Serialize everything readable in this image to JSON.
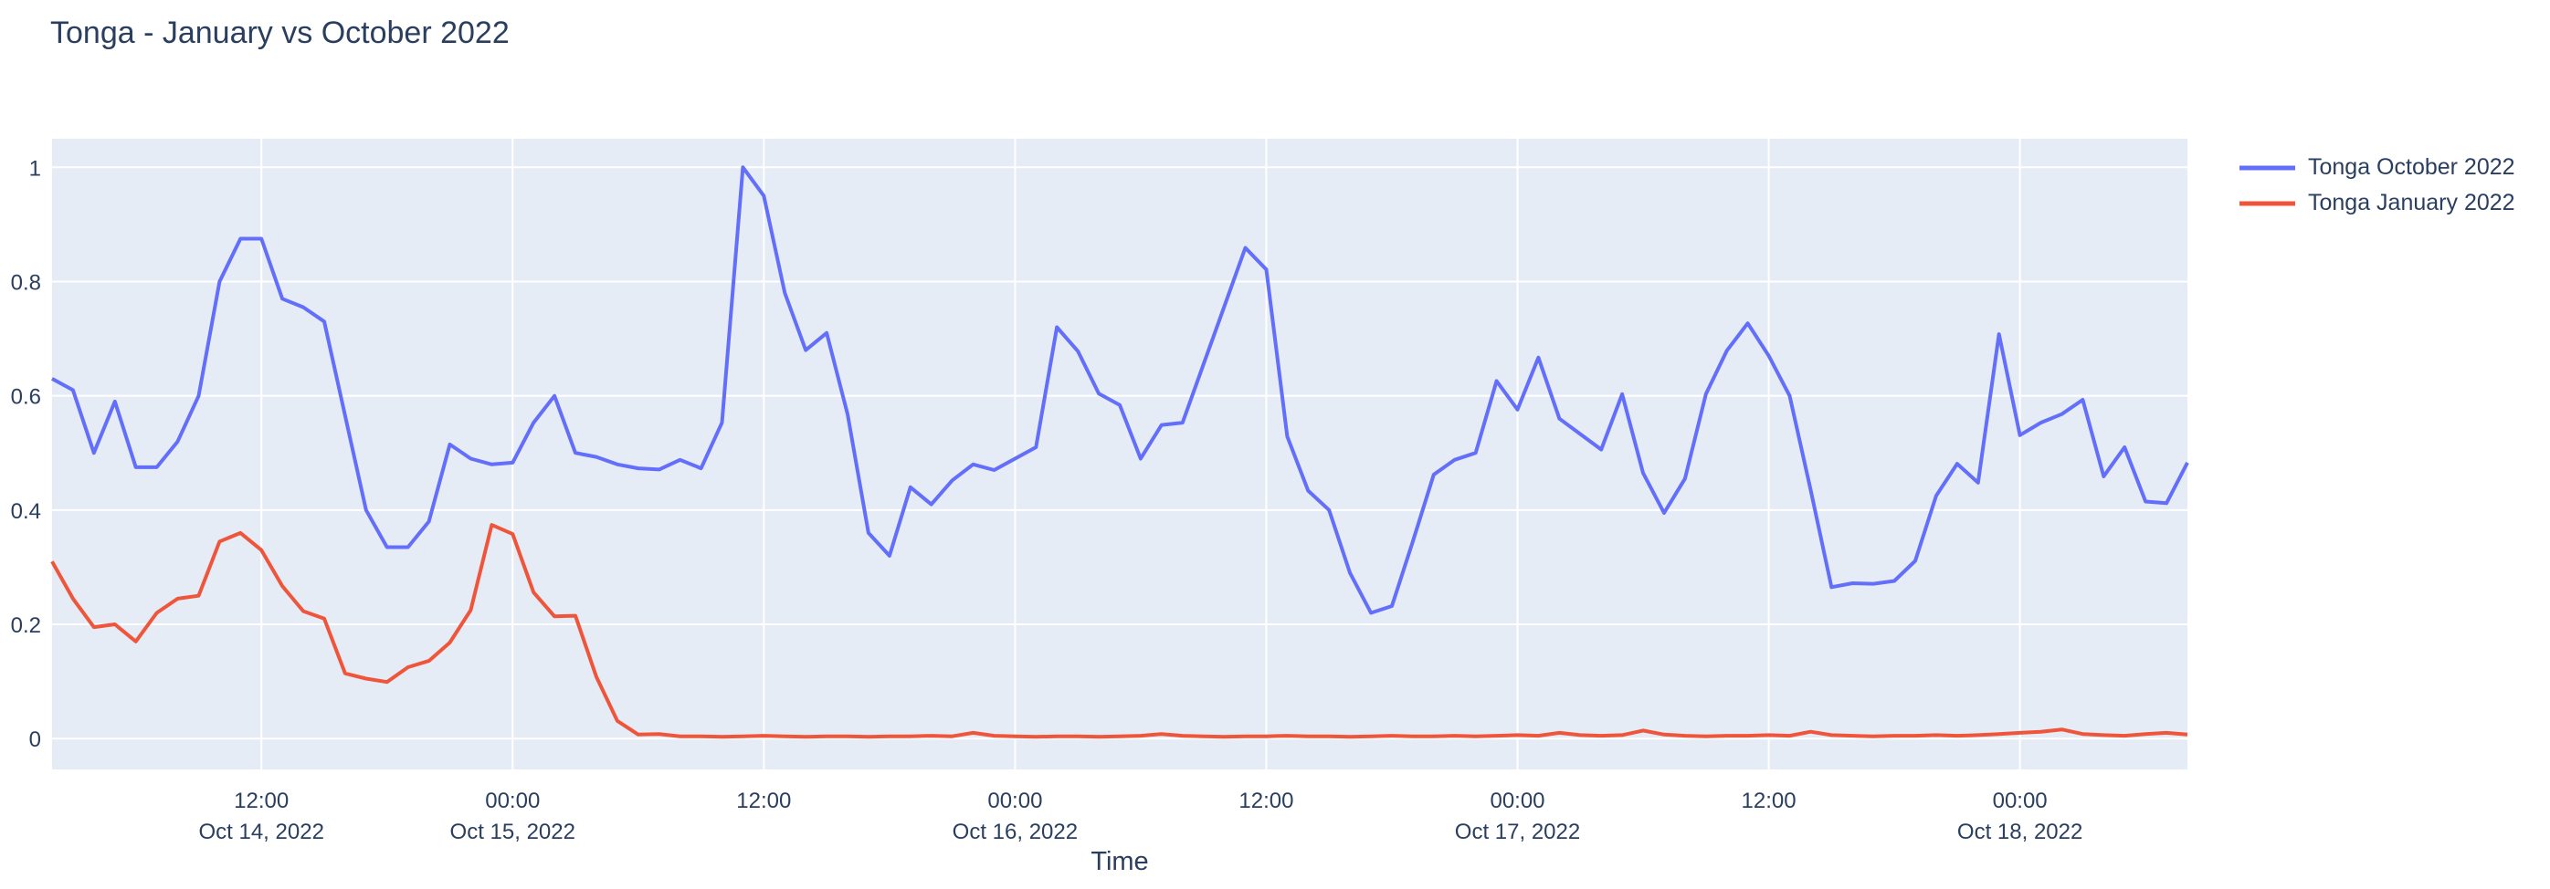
{
  "title": "Tonga - January vs October 2022",
  "chart_data": {
    "type": "line",
    "title": "Tonga - January vs October 2022",
    "xlabel": "Time",
    "ylabel": "",
    "x_start": "2022-10-14 02:00",
    "x_end": "2022-10-18 08:00",
    "x_step": "1 hour",
    "n_points": 103,
    "ylim": [
      -0.054,
      1.05
    ],
    "grid": true,
    "legend_position": "right-top-outside",
    "colors": {
      "plot_background": "#E5ECF6",
      "gridline": "#FFFFFF",
      "text": "#2a3f5f",
      "page_background": "#FFFFFF"
    },
    "y_ticks": [
      {
        "value": 0,
        "label": "0"
      },
      {
        "value": 0.2,
        "label": "0.2"
      },
      {
        "value": 0.4,
        "label": "0.4"
      },
      {
        "value": 0.6,
        "label": "0.6"
      },
      {
        "value": 0.8,
        "label": "0.8"
      },
      {
        "value": 1,
        "label": "1"
      }
    ],
    "x_ticks": [
      {
        "index": 10,
        "time": "12:00",
        "date": "Oct 14, 2022"
      },
      {
        "index": 22,
        "time": "00:00",
        "date": "Oct 15, 2022"
      },
      {
        "index": 34,
        "time": "12:00",
        "date": ""
      },
      {
        "index": 46,
        "time": "00:00",
        "date": "Oct 16, 2022"
      },
      {
        "index": 58,
        "time": "12:00",
        "date": ""
      },
      {
        "index": 70,
        "time": "00:00",
        "date": "Oct 17, 2022"
      },
      {
        "index": 82,
        "time": "12:00",
        "date": ""
      },
      {
        "index": 94,
        "time": "00:00",
        "date": "Oct 18, 2022"
      }
    ],
    "series": [
      {
        "name": "Tonga October 2022",
        "color": "#636EFA",
        "values": [
          0.63,
          0.61,
          0.5,
          0.59,
          0.475,
          0.475,
          0.52,
          0.6,
          0.8,
          0.875,
          0.875,
          0.77,
          0.755,
          0.73,
          0.565,
          0.4,
          0.335,
          0.335,
          0.38,
          0.515,
          0.49,
          0.48,
          0.483,
          0.553,
          0.6,
          0.5,
          0.493,
          0.48,
          0.473,
          0.471,
          0.488,
          0.473,
          0.553,
          1.0,
          0.95,
          0.78,
          0.68,
          0.71,
          0.568,
          0.36,
          0.32,
          0.44,
          0.41,
          0.452,
          0.48,
          0.47,
          0.49,
          0.51,
          0.72,
          0.678,
          0.604,
          0.584,
          0.49,
          0.549,
          0.553,
          0.655,
          0.757,
          0.859,
          0.821,
          0.529,
          0.434,
          0.4,
          0.29,
          0.22,
          0.232,
          0.345,
          0.462,
          0.488,
          0.5,
          0.626,
          0.576,
          0.667,
          0.56,
          0.533,
          0.506,
          0.603,
          0.465,
          0.395,
          0.455,
          0.603,
          0.679,
          0.727,
          0.67,
          0.6,
          0.436,
          0.265,
          0.272,
          0.271,
          0.276,
          0.311,
          0.425,
          0.481,
          0.448,
          0.708,
          0.531,
          0.553,
          0.568,
          0.593,
          0.459,
          0.51,
          0.415,
          0.412,
          0.483
        ]
      },
      {
        "name": "Tonga January 2022",
        "color": "#EF553B",
        "values": [
          0.31,
          0.245,
          0.195,
          0.2,
          0.17,
          0.22,
          0.245,
          0.25,
          0.345,
          0.36,
          0.33,
          0.267,
          0.223,
          0.21,
          0.114,
          0.105,
          0.099,
          0.125,
          0.136,
          0.168,
          0.225,
          0.374,
          0.358,
          0.256,
          0.214,
          0.215,
          0.108,
          0.031,
          0.007,
          0.008,
          0.004,
          0.004,
          0.003,
          0.004,
          0.005,
          0.004,
          0.003,
          0.004,
          0.004,
          0.003,
          0.004,
          0.004,
          0.005,
          0.004,
          0.01,
          0.005,
          0.004,
          0.003,
          0.004,
          0.004,
          0.003,
          0.004,
          0.005,
          0.008,
          0.005,
          0.004,
          0.003,
          0.004,
          0.004,
          0.005,
          0.004,
          0.004,
          0.003,
          0.004,
          0.005,
          0.004,
          0.004,
          0.005,
          0.004,
          0.005,
          0.006,
          0.005,
          0.01,
          0.006,
          0.005,
          0.006,
          0.014,
          0.007,
          0.005,
          0.004,
          0.005,
          0.005,
          0.006,
          0.005,
          0.012,
          0.006,
          0.005,
          0.004,
          0.005,
          0.005,
          0.006,
          0.005,
          0.006,
          0.008,
          0.01,
          0.012,
          0.016,
          0.008,
          0.006,
          0.005,
          0.008,
          0.01,
          0.007
        ]
      }
    ]
  }
}
